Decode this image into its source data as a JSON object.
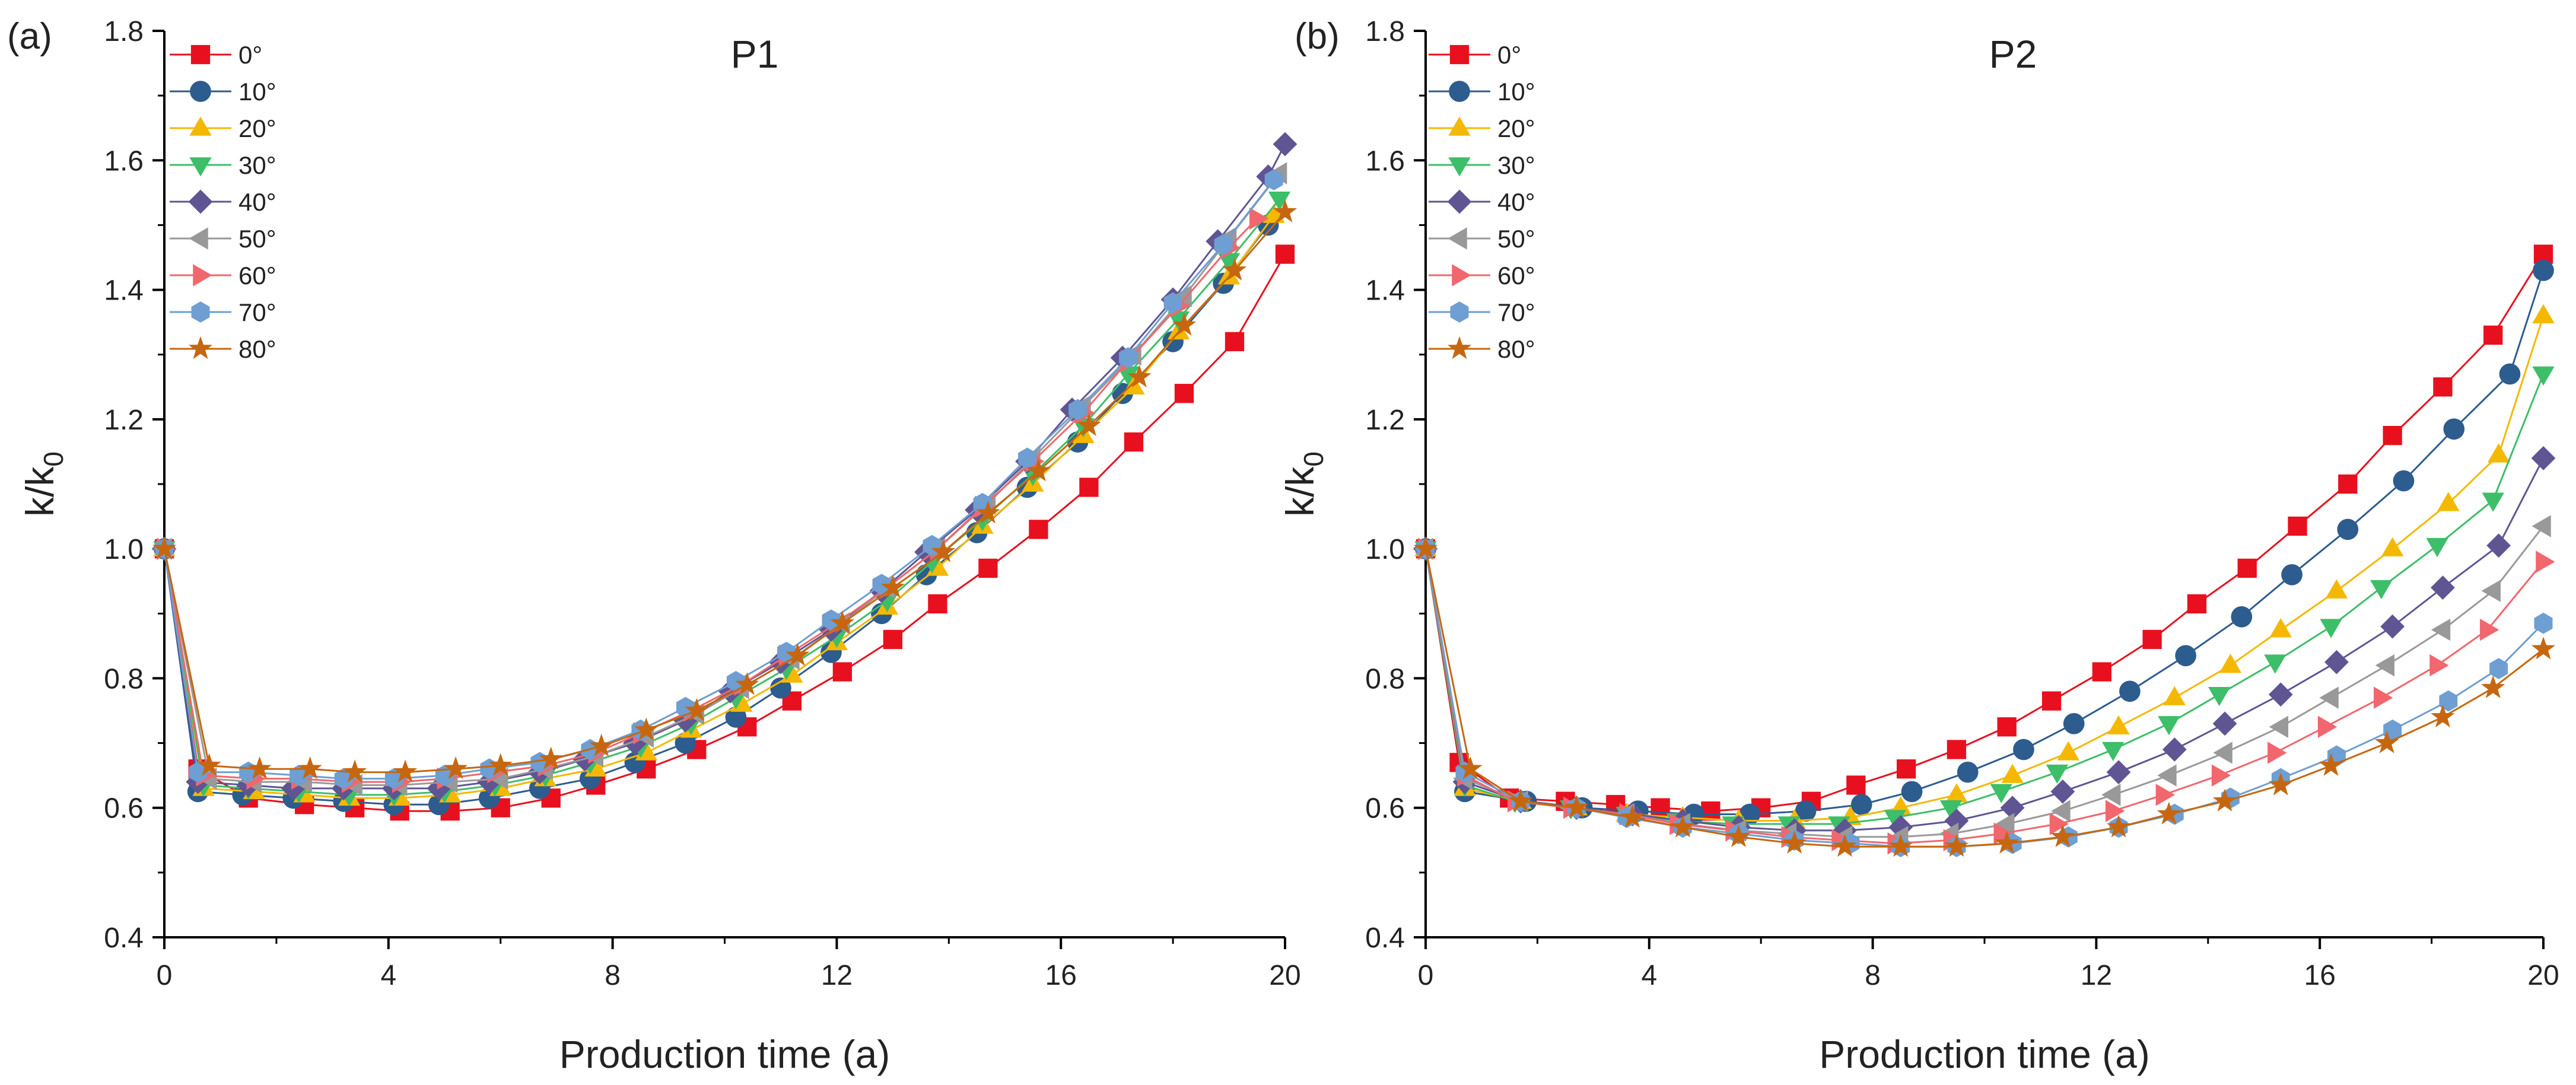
{
  "figure": {
    "panels": [
      {
        "label": "(a)",
        "title": "P1"
      },
      {
        "label": "(b)",
        "title": "P2"
      }
    ]
  },
  "legend": {
    "entries": [
      {
        "name": "0°",
        "color": "#E8101E",
        "marker": "square"
      },
      {
        "name": "10°",
        "color": "#2D5C8E",
        "marker": "circle"
      },
      {
        "name": "20°",
        "color": "#F5B800",
        "marker": "triangle-up"
      },
      {
        "name": "30°",
        "color": "#3DBE68",
        "marker": "triangle-down"
      },
      {
        "name": "40°",
        "color": "#5F5593",
        "marker": "diamond"
      },
      {
        "name": "50°",
        "color": "#999999",
        "marker": "triangle-left"
      },
      {
        "name": "60°",
        "color": "#F0676D",
        "marker": "triangle-right"
      },
      {
        "name": "70°",
        "color": "#6E9ED2",
        "marker": "hexagon"
      },
      {
        "name": "80°",
        "color": "#C6670F",
        "marker": "star"
      }
    ]
  },
  "chart_data": [
    {
      "type": "line",
      "title": "P1",
      "panel_label": "(a)",
      "xlabel": "Production time (a)",
      "ylabel_main": "k/k",
      "ylabel_sub": "0",
      "xlim": [
        0,
        20
      ],
      "ylim": [
        0.4,
        1.8
      ],
      "xticks": [
        "0",
        "4",
        "8",
        "12",
        "16",
        "20"
      ],
      "yticks": [
        "0.4",
        "0.6",
        "0.8",
        "1.0",
        "1.2",
        "1.4",
        "1.6",
        "1.8"
      ],
      "grid": false,
      "legend_position": "top-left",
      "series": [
        {
          "name": "0°",
          "x": [
            0,
            0.6,
            1.5,
            2.5,
            3.4,
            4.2,
            5.1,
            6,
            6.9,
            7.7,
            8.6,
            9.5,
            10.4,
            11.2,
            12.1,
            13,
            13.8,
            14.7,
            15.6,
            16.5,
            17.3,
            18.2,
            19.1,
            20
          ],
          "y": [
            1.0,
            0.66,
            0.615,
            0.605,
            0.6,
            0.595,
            0.595,
            0.6,
            0.615,
            0.635,
            0.66,
            0.69,
            0.725,
            0.765,
            0.81,
            0.86,
            0.915,
            0.97,
            1.03,
            1.095,
            1.165,
            1.24,
            1.32,
            1.455
          ]
        },
        {
          "name": "10°",
          "x": [
            0,
            0.6,
            1.4,
            2.3,
            3.2,
            4.1,
            4.9,
            5.8,
            6.7,
            7.6,
            8.4,
            9.3,
            10.2,
            11,
            11.9,
            12.8,
            13.6,
            14.5,
            15.4,
            16.3,
            17.1,
            18,
            18.9,
            19.7
          ],
          "y": [
            1.0,
            0.625,
            0.62,
            0.615,
            0.61,
            0.605,
            0.605,
            0.615,
            0.63,
            0.645,
            0.67,
            0.7,
            0.74,
            0.785,
            0.84,
            0.9,
            0.96,
            1.025,
            1.095,
            1.165,
            1.24,
            1.32,
            1.41,
            1.5
          ]
        },
        {
          "name": "20°",
          "x": [
            0,
            0.7,
            1.6,
            2.5,
            3.3,
            4.2,
            5.1,
            6,
            6.8,
            7.7,
            8.6,
            9.4,
            10.3,
            11.2,
            12,
            12.9,
            13.8,
            14.6,
            15.5,
            16.4,
            17.3,
            18.1,
            19,
            19.8
          ],
          "y": [
            1.0,
            0.63,
            0.625,
            0.62,
            0.615,
            0.615,
            0.62,
            0.63,
            0.645,
            0.66,
            0.685,
            0.72,
            0.76,
            0.805,
            0.855,
            0.91,
            0.97,
            1.035,
            1.1,
            1.175,
            1.25,
            1.335,
            1.42,
            1.515
          ]
        },
        {
          "name": "30°",
          "x": [
            0,
            0.7,
            1.5,
            2.4,
            3.3,
            4.1,
            5,
            5.9,
            6.8,
            7.6,
            8.5,
            9.4,
            10.2,
            11.1,
            12,
            12.9,
            13.7,
            14.6,
            15.5,
            16.4,
            17.2,
            18.1,
            19,
            19.9
          ],
          "y": [
            1.0,
            0.635,
            0.63,
            0.625,
            0.62,
            0.62,
            0.625,
            0.635,
            0.65,
            0.67,
            0.695,
            0.73,
            0.77,
            0.815,
            0.865,
            0.92,
            0.98,
            1.045,
            1.115,
            1.19,
            1.27,
            1.355,
            1.445,
            1.54
          ]
        },
        {
          "name": "40°",
          "x": [
            0,
            0.6,
            1.5,
            2.3,
            3.2,
            4.1,
            4.9,
            5.8,
            6.7,
            7.5,
            8.4,
            9.3,
            10.1,
            11,
            11.9,
            12.8,
            13.6,
            14.5,
            15.4,
            16.2,
            17.1,
            18,
            18.8,
            19.7,
            20
          ],
          "y": [
            1.0,
            0.64,
            0.635,
            0.63,
            0.63,
            0.63,
            0.63,
            0.64,
            0.655,
            0.675,
            0.7,
            0.735,
            0.78,
            0.825,
            0.875,
            0.935,
            0.995,
            1.06,
            1.135,
            1.215,
            1.295,
            1.385,
            1.475,
            1.575,
            1.625
          ]
        },
        {
          "name": "50°",
          "x": [
            0,
            0.8,
            1.6,
            2.5,
            3.4,
            4.2,
            5.1,
            6,
            6.8,
            7.7,
            8.6,
            9.5,
            10.3,
            11.2,
            12.1,
            12.9,
            13.8,
            14.7,
            15.5,
            16.4,
            17.3,
            18.2,
            19,
            19.9
          ],
          "y": [
            1.0,
            0.645,
            0.64,
            0.64,
            0.635,
            0.635,
            0.64,
            0.645,
            0.66,
            0.68,
            0.71,
            0.745,
            0.785,
            0.83,
            0.885,
            0.94,
            1.0,
            1.07,
            1.14,
            1.22,
            1.3,
            1.39,
            1.48,
            1.58
          ]
        },
        {
          "name": "60°",
          "x": [
            0,
            0.7,
            1.6,
            2.4,
            3.3,
            4.2,
            5,
            5.9,
            6.8,
            7.7,
            8.5,
            9.4,
            10.3,
            11.1,
            12,
            12.9,
            13.8,
            14.6,
            15.5,
            16.4,
            17.2,
            18.1,
            19,
            19.5
          ],
          "y": [
            1.0,
            0.65,
            0.645,
            0.645,
            0.64,
            0.64,
            0.645,
            0.655,
            0.665,
            0.685,
            0.715,
            0.75,
            0.79,
            0.835,
            0.885,
            0.94,
            1.0,
            1.065,
            1.135,
            1.21,
            1.29,
            1.375,
            1.465,
            1.51
          ]
        },
        {
          "name": "70°",
          "x": [
            0,
            0.6,
            1.5,
            2.4,
            3.2,
            4.1,
            5,
            5.8,
            6.7,
            7.6,
            8.5,
            9.3,
            10.2,
            11.1,
            11.9,
            12.8,
            13.7,
            14.6,
            15.4,
            16.3,
            17.2,
            18,
            18.9,
            19.8
          ],
          "y": [
            1.0,
            0.655,
            0.655,
            0.65,
            0.645,
            0.645,
            0.65,
            0.66,
            0.67,
            0.69,
            0.72,
            0.755,
            0.795,
            0.84,
            0.89,
            0.945,
            1.005,
            1.07,
            1.14,
            1.215,
            1.295,
            1.38,
            1.47,
            1.57
          ]
        },
        {
          "name": "80°",
          "x": [
            0,
            0.8,
            1.7,
            2.6,
            3.4,
            4.3,
            5.2,
            6,
            6.9,
            7.8,
            8.6,
            9.5,
            10.4,
            11.3,
            12.1,
            13,
            13.9,
            14.7,
            15.6,
            16.5,
            17.4,
            18.2,
            19.1,
            20
          ],
          "y": [
            1.0,
            0.665,
            0.66,
            0.66,
            0.655,
            0.655,
            0.66,
            0.665,
            0.675,
            0.695,
            0.72,
            0.75,
            0.79,
            0.835,
            0.885,
            0.94,
            0.995,
            1.055,
            1.12,
            1.19,
            1.265,
            1.345,
            1.43,
            1.52
          ]
        }
      ]
    },
    {
      "type": "line",
      "title": "P2",
      "panel_label": "(b)",
      "xlabel": "Production time (a)",
      "ylabel_main": "k/k",
      "ylabel_sub": "0",
      "xlim": [
        0,
        20
      ],
      "ylim": [
        0.4,
        1.8
      ],
      "xticks": [
        "0",
        "4",
        "8",
        "12",
        "16",
        "20"
      ],
      "yticks": [
        "0.4",
        "0.6",
        "0.8",
        "1.0",
        "1.2",
        "1.4",
        "1.6",
        "1.8"
      ],
      "grid": false,
      "legend_position": "top-left",
      "series": [
        {
          "name": "0°",
          "x": [
            0,
            0.6,
            1.5,
            2.5,
            3.4,
            4.2,
            5.1,
            6,
            6.9,
            7.7,
            8.6,
            9.5,
            10.4,
            11.2,
            12.1,
            13,
            13.8,
            14.7,
            15.6,
            16.5,
            17.3,
            18.2,
            19.1,
            20
          ],
          "y": [
            1.0,
            0.67,
            0.615,
            0.61,
            0.605,
            0.6,
            0.595,
            0.6,
            0.61,
            0.635,
            0.66,
            0.69,
            0.725,
            0.765,
            0.81,
            0.86,
            0.915,
            0.97,
            1.035,
            1.1,
            1.175,
            1.25,
            1.33,
            1.455
          ]
        },
        {
          "name": "10°",
          "x": [
            0,
            0.7,
            1.8,
            2.8,
            3.8,
            4.8,
            5.8,
            6.8,
            7.8,
            8.7,
            9.7,
            10.7,
            11.6,
            12.6,
            13.6,
            14.6,
            15.5,
            16.5,
            17.5,
            18.4,
            19.4,
            20
          ],
          "y": [
            1.0,
            0.625,
            0.61,
            0.6,
            0.595,
            0.59,
            0.59,
            0.595,
            0.605,
            0.625,
            0.655,
            0.69,
            0.73,
            0.78,
            0.835,
            0.895,
            0.96,
            1.03,
            1.105,
            1.185,
            1.27,
            1.43
          ]
        },
        {
          "name": "20°",
          "x": [
            0,
            0.7,
            1.7,
            2.7,
            3.6,
            4.6,
            5.6,
            6.6,
            7.6,
            8.5,
            9.5,
            10.5,
            11.5,
            12.4,
            13.4,
            14.4,
            15.3,
            16.3,
            17.3,
            18.3,
            19.2,
            20
          ],
          "y": [
            1.0,
            0.63,
            0.61,
            0.6,
            0.59,
            0.585,
            0.58,
            0.58,
            0.585,
            0.6,
            0.62,
            0.65,
            0.685,
            0.725,
            0.77,
            0.82,
            0.875,
            0.935,
            1.0,
            1.07,
            1.145,
            1.36
          ]
        },
        {
          "name": "30°",
          "x": [
            0,
            0.7,
            1.6,
            2.6,
            3.6,
            4.5,
            5.5,
            6.5,
            7.4,
            8.4,
            9.4,
            10.3,
            11.3,
            12.3,
            13.3,
            14.2,
            15.2,
            16.2,
            17.1,
            18.1,
            19.1,
            20
          ],
          "y": [
            1.0,
            0.635,
            0.61,
            0.6,
            0.59,
            0.58,
            0.575,
            0.575,
            0.575,
            0.585,
            0.6,
            0.625,
            0.655,
            0.69,
            0.73,
            0.775,
            0.825,
            0.88,
            0.94,
            1.005,
            1.075,
            1.27
          ]
        },
        {
          "name": "40°",
          "x": [
            0,
            0.7,
            1.7,
            2.7,
            3.7,
            4.6,
            5.6,
            6.6,
            7.5,
            8.5,
            9.5,
            10.5,
            11.4,
            12.4,
            13.4,
            14.3,
            15.3,
            16.3,
            17.3,
            18.2,
            19.2,
            20
          ],
          "y": [
            1.0,
            0.64,
            0.61,
            0.6,
            0.59,
            0.58,
            0.57,
            0.565,
            0.565,
            0.57,
            0.58,
            0.6,
            0.625,
            0.655,
            0.69,
            0.73,
            0.775,
            0.825,
            0.88,
            0.94,
            1.005,
            1.14
          ]
        },
        {
          "name": "50°",
          "x": [
            0,
            0.7,
            1.7,
            2.6,
            3.6,
            4.6,
            5.6,
            6.5,
            7.5,
            8.5,
            9.4,
            10.4,
            11.4,
            12.3,
            13.3,
            14.3,
            15.3,
            16.2,
            17.2,
            18.2,
            19.1,
            20
          ],
          "y": [
            1.0,
            0.645,
            0.61,
            0.6,
            0.59,
            0.575,
            0.565,
            0.56,
            0.555,
            0.555,
            0.56,
            0.575,
            0.595,
            0.62,
            0.65,
            0.685,
            0.725,
            0.77,
            0.82,
            0.875,
            0.935,
            1.035
          ]
        },
        {
          "name": "60°",
          "x": [
            0,
            0.7,
            1.6,
            2.6,
            3.6,
            4.5,
            5.5,
            6.5,
            7.4,
            8.4,
            9.4,
            10.3,
            11.3,
            12.3,
            13.2,
            14.2,
            15.2,
            16.1,
            17.1,
            18.1,
            19,
            20
          ],
          "y": [
            1.0,
            0.65,
            0.61,
            0.6,
            0.59,
            0.575,
            0.565,
            0.555,
            0.55,
            0.545,
            0.55,
            0.56,
            0.575,
            0.595,
            0.62,
            0.65,
            0.685,
            0.725,
            0.77,
            0.82,
            0.875,
            0.98
          ]
        },
        {
          "name": "70°",
          "x": [
            0,
            0.7,
            1.7,
            2.7,
            3.6,
            4.6,
            5.6,
            6.6,
            7.6,
            8.5,
            9.5,
            10.5,
            11.5,
            12.4,
            13.4,
            14.4,
            15.3,
            16.3,
            17.3,
            18.3,
            19.2,
            20
          ],
          "y": [
            1.0,
            0.655,
            0.61,
            0.6,
            0.585,
            0.57,
            0.56,
            0.55,
            0.545,
            0.54,
            0.54,
            0.545,
            0.555,
            0.57,
            0.59,
            0.615,
            0.645,
            0.68,
            0.72,
            0.765,
            0.815,
            0.885
          ]
        },
        {
          "name": "80°",
          "x": [
            0,
            0.8,
            1.7,
            2.7,
            3.7,
            4.6,
            5.6,
            6.6,
            7.5,
            8.5,
            9.5,
            10.4,
            11.4,
            12.4,
            13.3,
            14.3,
            15.3,
            16.2,
            17.2,
            18.2,
            19.1,
            20
          ],
          "y": [
            1.0,
            0.66,
            0.61,
            0.6,
            0.585,
            0.57,
            0.555,
            0.545,
            0.54,
            0.54,
            0.54,
            0.545,
            0.555,
            0.57,
            0.59,
            0.61,
            0.635,
            0.665,
            0.7,
            0.74,
            0.785,
            0.845
          ]
        }
      ]
    }
  ]
}
